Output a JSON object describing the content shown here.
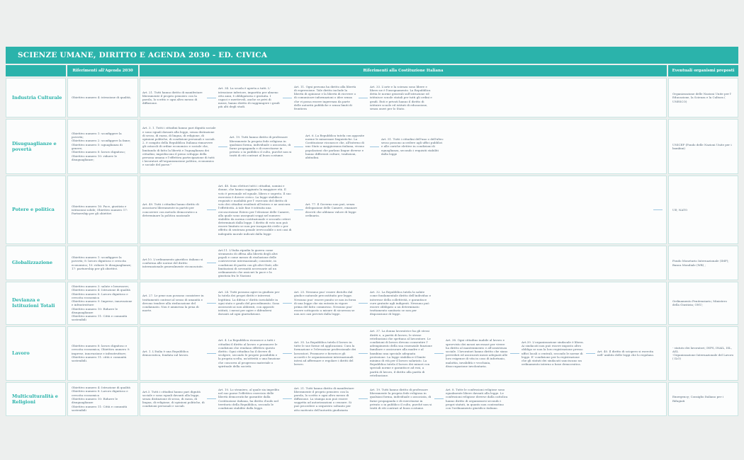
{
  "title": "SCIENZE UMANE, DIRITTO E AGENDA 2030 - ED. CIVICA",
  "columns": {
    "agenda": "Riferimenti all'Agenda 2030",
    "costituzione": "Riferimenti alla Costituzione Italiana",
    "organismi": "Eventuali organismi preposti"
  },
  "colors": {
    "teal": "#2bb3ab",
    "body_text": "#546878",
    "connector_line": "#9cc6e0",
    "cell_border": "#c9e6e3",
    "page_background": "#edefee"
  },
  "rows": [
    {
      "topic": "Industria Culturale",
      "agenda": "Obiettivo numero 4: istruzione di qualità;",
      "articles": [
        "Art. 21. Tutti hanno diritto di manifestare liberamente il proprio pensiero con la parola, lo scritto e ogni altro mezzo di diffusione.",
        "Art. 34. La scuola è aperta a tutti. L' istruzione inferiore, impartita per almeno otto anni, è obbligatoria e gratuita. I capaci e meritevoli, anche se privi di mezzi, hanno diritto di raggiungere i gradi più alti degli studi.",
        "Art. 11. Ogni persona ha diritto alla libertà di espressione. Tale diritto include la libertà di opinione e la libertà di ricevere o di comunicare informazioni o idee senza che vi possa essere ingerenza da parte delle autorità pubbliche e senza limiti di frontiera",
        "Art. 33. L'arte e la scienza sono libere e libero ne è l'insegnamento. La Repubblica detta le norme generali sull'istruzione ed istituisce scuole statali per tutti gli ordini e gradi. Enti e privati hanno il diritto di istituire scuole ed istituti di educazione, senza oneri per lo Stato.",
        "Organizzazione delle Nazioni Unite per l' Educazione, la Scienza e la Cultura ( UNESCO)"
      ],
      "organismi": "Organizzazione delle Nazioni Unite per l' Educazione, la Scienza e la Cultura ( UNESCO)"
    },
    {
      "topic": "Disuguaglianze e povertà",
      "agenda": "Obiettivo numero 1: sconfiggere la povertà;\nObiettivo numero 2: sconfiggere la fame;\nObiettivo numero 5: uguaglianza di genere;\nObiettivo numero 8: lavoro dignitoso;\nObiettivo numero 10: ridurre le disuguaglianze;",
      "articles": [
        "Art. 3. 1. Tutti i cittadini hanno pari dignità sociale e sono eguali davanti alla legge, senza distinzione di sesso, di razza, di lingua, di religione, di opinioni politiche, di condizioni personali e sociali. 2. è compito della Repubblica Italiana rimuovere gli ostacoli di ordine economico e sociale che, limitando di fatto la libertà e l'uguaglianza dei cittadini, impediscono il pieno sviluppo della persona umana e l'effettiva partecipazione di tutti i lavoratori all'organizzazione politica, economica e sociale del paese.\"",
        "Art. 19. Tutti hanno diritto di professare liberamente la propria fede religiosa in qualsiasi forma, individuale o associata, di farne propaganda e di esercitarne in privato o in pubblico il culto, purché non si tratti di riti contrari al buon costume.",
        "Art. 6. La Repubblica tutela con apposite norme le minoranze linguistiche. La Costituzione riconosce che, all'interno di uno Stato a maggioranza italiana, vivono popolazioni che parlano lingue diverse e hanno differenti culture, tradizioni, abitudini.",
        "Art. 51. Tutti i cittadini dell'uno o dell'altro sesso possono accedere agli uffici pubblici e alle cariche elettive in condizioni di eguaglianza, secondo i requisiti stabiliti dalla legge"
      ],
      "organismi": "UNICEF (Fondo delle Nazioni Unite per i bambini)"
    },
    {
      "topic": "Potere e politica",
      "agenda": "Obiettivo numero 16: Pace, giustizia e istituzioni solide; Obiettivo numero 17: Partnership per gli obiettivi",
      "articles": [
        "Art. 49. Tutti i cittadini hanno diritto di associarsi liberamente in partiti per concorrere con metodo democratico a determinare la politica nazionale",
        "Art. 48. Sono elettori tutti i cittadini, uomini e donne, che hanno raggiunto la maggiore età. Il voto è personale ed eguale, libero e segreto. Il suo esercizio è dovere civico. La legge stabilisce requisiti e modalità per l' esercizio del diritto di voto dei cittadini residenti all'estero e ne assicura l'effettività. A tale fine è istituita una circoscrizione Estero per l'elezione delle Camere, alla quale sono assegnati seggi nel numero stabilito da norma costituzionale e secondo criteri determinati dalla legge. I diritto di voto non può essere limitato se non per incapacità civile o per effetto di sentenza penale irrevocabile o nei casi di indegnità morale indicati dalla legge",
        "Art. 77. Il Governo non può, senza delegazione delle Camere, emanare decreti che abbiano valore di legge ordinaria."
      ],
      "organismi": "UE; NATO"
    },
    {
      "topic": "Globalizzazione",
      "agenda": "Obiettivo numero 1: sconfiggere la povertà; 8: lavoro dignitoso e crescita economica; 10: ridurre le disuguaglianze; 17: partnership per gli obiettivi.",
      "articles": [
        "Art.10. L'ordinamento giuridico italiano si conforma alle norme del diritto internazionale generalmente riconosciute.",
        "Art.11. L'Italia ripudia la guerra come strumento di offesa alla libertà degli altri popoli e come mezzo di risoluzione delle controversie internazionali; consente, in condizioni di parità con gli altri Stati, alle limitazioni di sovranità necessarie ad un ordinamento che assicuri la pace e la giustizia fra le Nazioni"
      ],
      "organismi": "Fondo Monetario Internazionale (IMF); Banca Mondiale (WB) ;"
    },
    {
      "topic": "Devianza e Istituzioni Totali",
      "agenda": "Obiettivo numero 3: salute e benessere;\nObiettivo numero 4: Istruzione di qualità\nObiettivo numero 8: Lavoro dignitoso e crescita economica\nObiettivo numero 9: Imprese, innovazione e infrastrutture\nObiettivo numero 10: Ridurre le disuguaglianze\nObiettivo numero 11: Città e comunità sostenibili",
      "articles": [
        "Art. 27. Le pene non possono consistere in trattamenti contrari al senso di umanità e devono tendere alla rieducazione del condannato. Non è ammessa la pena di morte.",
        "Art. 24. Tutti possono agire in giudizio per la tutela dei propri diritti e interessi legittimi. La difesa e' diritto inviolabile in ogni stato e grado del procedimento. Sono assicurati ai non abbienti, con appositi istituti, i mezzi per agire e difendersi davanti ad ogni giurisdizione.",
        "Art. 25. Nessuno puo' essere distolto dal giudice naturale precostituito per legge. Nessuno puo' essere punito se non in forza di una legge che sia entrata in vigore prima del fatto commesso. Nessuno puo' essere sottoposto a misure di sicurezza se non nei casi previsti dalla legge.",
        "Art. 32. La Repubblica tutela la salute come fondamentale diritto dell'individuo e interesse della collettività, e garantisce cure gratuite agli indigenti. Nessuno può essere obbligato a un determinato trattamento sanitario se non per disposizione di legge."
      ],
      "organismi": "Ordinamento Penitenziario; Ministero della Giustizia; ONU;"
    },
    {
      "topic": "Lavoro",
      "agenda": "Obiettivo numero 8: lavoro dignitoso e crescita economica; Obiettivo numero 9: imprese, innovazione e infrastrutture; Obiettivo numero 11: città e comunità sostenibili.",
      "articles": [
        "Art. 1. L'Italia è una Repubblica democratica, fondata sul lavoro.",
        "Art. 4. La Repubblica riconosce a tutti i cittadini il diritto al lavoro e promuove le condizioni che rendano effettivo questo diritto. Ogni cittadino ha il dovere di svolgere, secondo le proprie possibilità e la propria scelta, un'attività o una funzione che concorra al progresso materiale o spirituale della società.",
        "Art. 35. La Repubblica tutela il lavoro in tutte le sue forme ed applicazioni. Cura la formazione e l'elevazione professionale dei lavoratori. Promuove e favorisce gli accordi e le organizzazioni internazionali intesi ad affermare e regolare i diritti del lavoro.",
        "Art. 37. La donna lavoratrice ha gli stessi diritti e, a parità di lavoro, le stesse retribuzioni che spettano al lavoratore. Le condizioni di lavoro devono consentire l' adempimento della sua essenziale funzione familiare e assicurare alla madre e al bambino una speciale adeguata protezione. La legge stabilisce il limite minimo di età per il lavoro salariato. La Repubblica tutela il lavoro dei minori con speciali norme e garantisce ad essi, a parità di lavoro, il diritto alla parità di retribuzione.",
        "Art. 38. Ogni cittadino inabile al lavoro e sprovvisto dei mezzi necessari per vivere ha diritto al mantenimento e all'assistenza sociale. I lavoratori hanno diritto che siano preveduti ed assicurati mezzi adeguati alle loro esigenze di vita in caso di infortunio, malattia, invalidità e vecchiaia, disoccupazione involontaria.",
        "Art.39. L'organizzazione sindacale è libera. Ai sindacati non può essere imposto altro obbligo se non la loro registrazione presso uffici locali o centrali, secondo le norme di legge. E' condizione per la registrazione che gli statuti dei sindacati sanciscano un ordinamento interno a base democratica.",
        "Art. 40. Il diritto di sciopero si esercita nell' ambito delle leggi che lo regolano."
      ],
      "organismi": "- statuto dei lavoratori; INPS, INAIL, ISL, ASL\n-Organizzazione Internazionale del Lavoro ( ILO)"
    },
    {
      "topic": "Multiculturalità e Religioni",
      "agenda": "Obiettivo numero 4: Istruzione di qualità\nObiettivo numero 8: Lavoro dignitoso e crescita economica\nObiettivo numero 10: Ridurre le disuguaglianze\nObiettivo numero 11: Città e comunità sostenibili",
      "articles": [
        "Art.3. Tutti i cittadini hanno pari dignità sociale e sono eguali davanti alla legge, senza distinzione di sesso, di razza, di lingua, di religione, di opinioni politiche, di condizioni personali e sociali.",
        "Art. 10. Lo straniero, al quale sia impedito nel suo paese l'effettivo esercizio delle libertà democratiche garantite dalla Costituzione italiana, ha diritto d'asilo nel territorio della Repubblica, secondo le condizioni stabilite dalla legge.",
        "Art. 21. Tutti hanno diritto di manifestare liberamente il proprio pensiero con la parola, lo scritto e ogni altro mezzo di diffusione. La stampa non può essere soggetta ad autorizzazioni o censure. Si può procedere a sequestro soltanto per atto motivato dell'autorità giudiziaria",
        "Art. 19. Tutti hanno diritto di professare liberamente la propria fede religiosa in qualsiasi forma, individuale o associata, di farne propaganda e di esercitarne in privato o in pubblico il culto, purché non si tratti di riti contrari al buon costume.",
        "Art. 8. Tutte le confessioni religiose sono egualmente libere davanti alla legge. Le confessioni religiose diverse dalla cattolica hanno diritto di organizzarsi secondo i propri statuti, in quanto non contrastino con l'ordinamento giuridico italiano."
      ],
      "organismi": "Emergency; Consiglio Italiano per i Rifugiati"
    }
  ]
}
